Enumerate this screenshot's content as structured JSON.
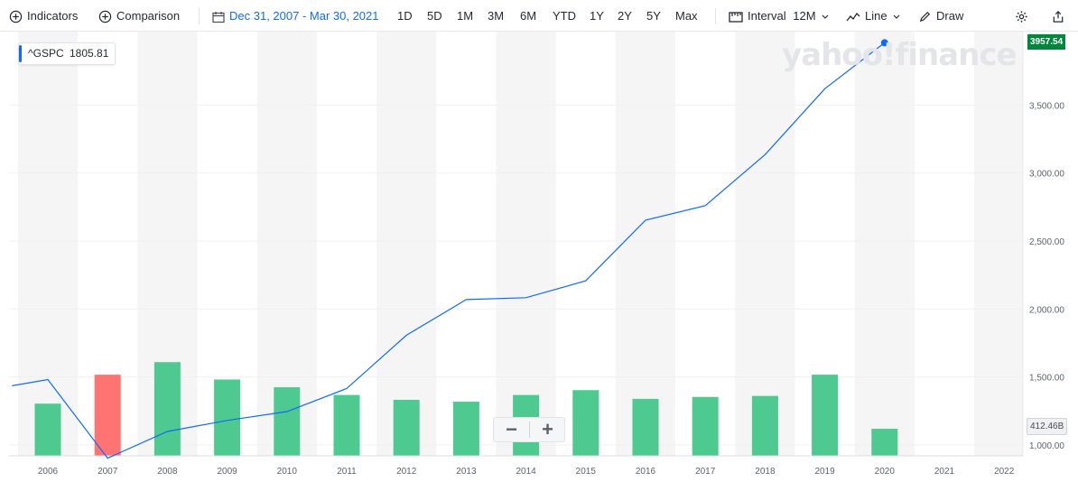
{
  "toolbar": {
    "indicators": "Indicators",
    "comparison": "Comparison",
    "date_range": "Dec 31, 2007 - Mar 30, 2021",
    "periods": [
      "1D",
      "5D",
      "1M",
      "3M",
      "6M",
      "YTD",
      "1Y",
      "2Y",
      "5Y",
      "Max"
    ],
    "interval_label": "Interval",
    "interval_value": "12M",
    "chart_type": "Line",
    "draw": "Draw"
  },
  "legend": {
    "symbol": "^GSPC",
    "value": "1805.81"
  },
  "last_price": "3957.54",
  "volume_tag": "412.46B",
  "watermark": "yahoo!finance",
  "zoom": {
    "minus": "−",
    "plus": "+"
  },
  "colors": {
    "line": "#0f69ff",
    "vol_up": "#4ec98f",
    "vol_down": "#ff7373",
    "last_price_bg": "#00873c"
  },
  "chart_data": {
    "type": "line",
    "x_ticks": [
      "2006",
      "2007",
      "2008",
      "2009",
      "2010",
      "2011",
      "2012",
      "2013",
      "2014",
      "2015",
      "2016",
      "2017",
      "2018",
      "2019",
      "2020",
      "2021",
      "2022"
    ],
    "y_ticks": [
      "1,000.00",
      "1,500.00",
      "2,000.00",
      "2,500.00",
      "3,000.00",
      "3,500.00"
    ],
    "ylim": [
      920,
      4040
    ],
    "series": [
      {
        "name": "^GSPC",
        "x": [
          2005.4,
          2006,
          2007,
          2008,
          2009,
          2010,
          2011,
          2012,
          2013,
          2014,
          2015,
          2016,
          2017,
          2018,
          2019,
          2020
        ],
        "values": [
          1435,
          1481,
          903,
          1099,
          1180,
          1245,
          1415,
          1807,
          2069,
          2083,
          2207,
          2653,
          2760,
          3135,
          3620,
          3957.54
        ]
      }
    ],
    "volume": {
      "x": [
        2006,
        2007,
        2008,
        2009,
        2010,
        2011,
        2012,
        2013,
        2014,
        2015,
        2016,
        2017,
        2018,
        2019,
        2020
      ],
      "relative": [
        0.54,
        0.84,
        0.97,
        0.79,
        0.71,
        0.63,
        0.58,
        0.56,
        0.63,
        0.68,
        0.59,
        0.61,
        0.62,
        0.84,
        0.28
      ],
      "direction": [
        "up",
        "down",
        "up",
        "up",
        "up",
        "up",
        "up",
        "up",
        "up",
        "up",
        "up",
        "up",
        "up",
        "up",
        "up"
      ]
    },
    "shaded_years": [
      "2006",
      "2008",
      "2010",
      "2012",
      "2014",
      "2016",
      "2018",
      "2020",
      "2022"
    ]
  }
}
